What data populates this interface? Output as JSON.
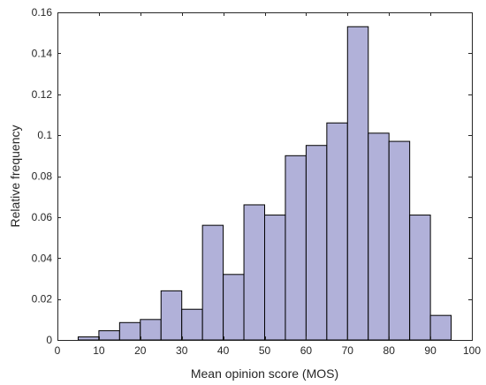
{
  "chart_data": {
    "type": "bar",
    "subtype": "histogram",
    "title": "",
    "xlabel": "Mean opinion score (MOS)",
    "ylabel": "Relative frequency",
    "xlim": [
      0,
      100
    ],
    "ylim": [
      0,
      0.16
    ],
    "xticks": [
      0,
      10,
      20,
      30,
      40,
      50,
      60,
      70,
      80,
      90,
      100
    ],
    "yticks": [
      0,
      0.02,
      0.04,
      0.06,
      0.08,
      0.1,
      0.12,
      0.14,
      0.16
    ],
    "xtick_labels": [
      "0",
      "10",
      "20",
      "30",
      "40",
      "50",
      "60",
      "70",
      "80",
      "90",
      "100"
    ],
    "ytick_labels": [
      "0",
      "0.02",
      "0.04",
      "0.06",
      "0.08",
      "0.1",
      "0.12",
      "0.14",
      "0.16"
    ],
    "bin_width": 5,
    "bin_starts": [
      5,
      10,
      15,
      20,
      25,
      30,
      35,
      40,
      45,
      50,
      55,
      60,
      65,
      70,
      75,
      80,
      85,
      90
    ],
    "values": [
      0.0015,
      0.0045,
      0.0085,
      0.01,
      0.024,
      0.015,
      0.056,
      0.032,
      0.066,
      0.061,
      0.09,
      0.095,
      0.106,
      0.153,
      0.101,
      0.097,
      0.061,
      0.012
    ],
    "bar_color": "#b1b1d9",
    "edge_color": "#000000",
    "grid": false,
    "box": true
  }
}
